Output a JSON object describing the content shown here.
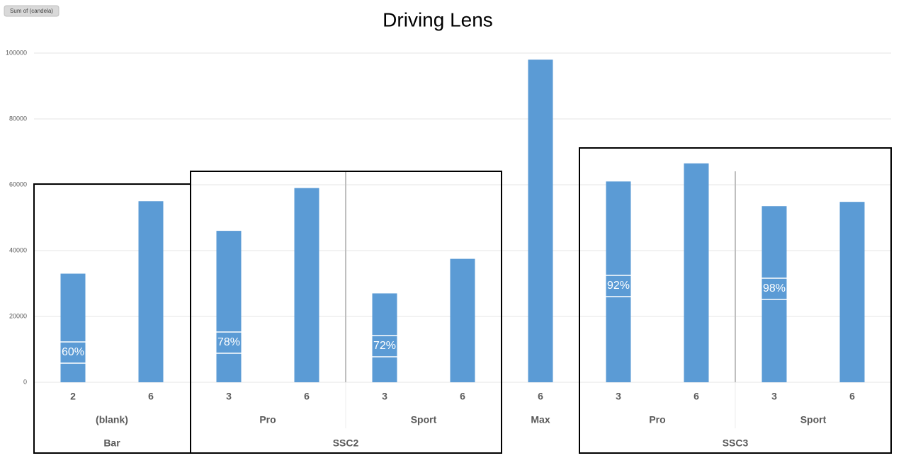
{
  "chart_data": {
    "type": "bar",
    "title": "Driving Lens",
    "field_button": "Sum of (candela)",
    "categories": [
      [
        "Bar",
        "(blank)",
        "2"
      ],
      [
        "Bar",
        "(blank)",
        "6"
      ],
      [
        "SSC2",
        "Pro",
        "3"
      ],
      [
        "SSC2",
        "Pro",
        "6"
      ],
      [
        "SSC2",
        "Sport",
        "3"
      ],
      [
        "SSC2",
        "Sport",
        "6"
      ],
      [
        null,
        "Max",
        "6"
      ],
      [
        "SSC3",
        "Pro",
        "3"
      ],
      [
        "SSC3",
        "Pro",
        "6"
      ],
      [
        "SSC3",
        "Sport",
        "3"
      ],
      [
        "SSC3",
        "Sport",
        "6"
      ]
    ],
    "values": [
      33000,
      55000,
      46000,
      59000,
      27000,
      37500,
      98000,
      61000,
      66500,
      53500,
      54800
    ],
    "annotations": [
      "60%",
      null,
      "78%",
      null,
      "72%",
      null,
      null,
      "92%",
      null,
      "98%",
      null
    ],
    "color": "#5b9bd5",
    "ylim": [
      0,
      100000
    ],
    "yticks": [
      0,
      20000,
      40000,
      60000,
      80000,
      100000
    ],
    "grid": true
  }
}
